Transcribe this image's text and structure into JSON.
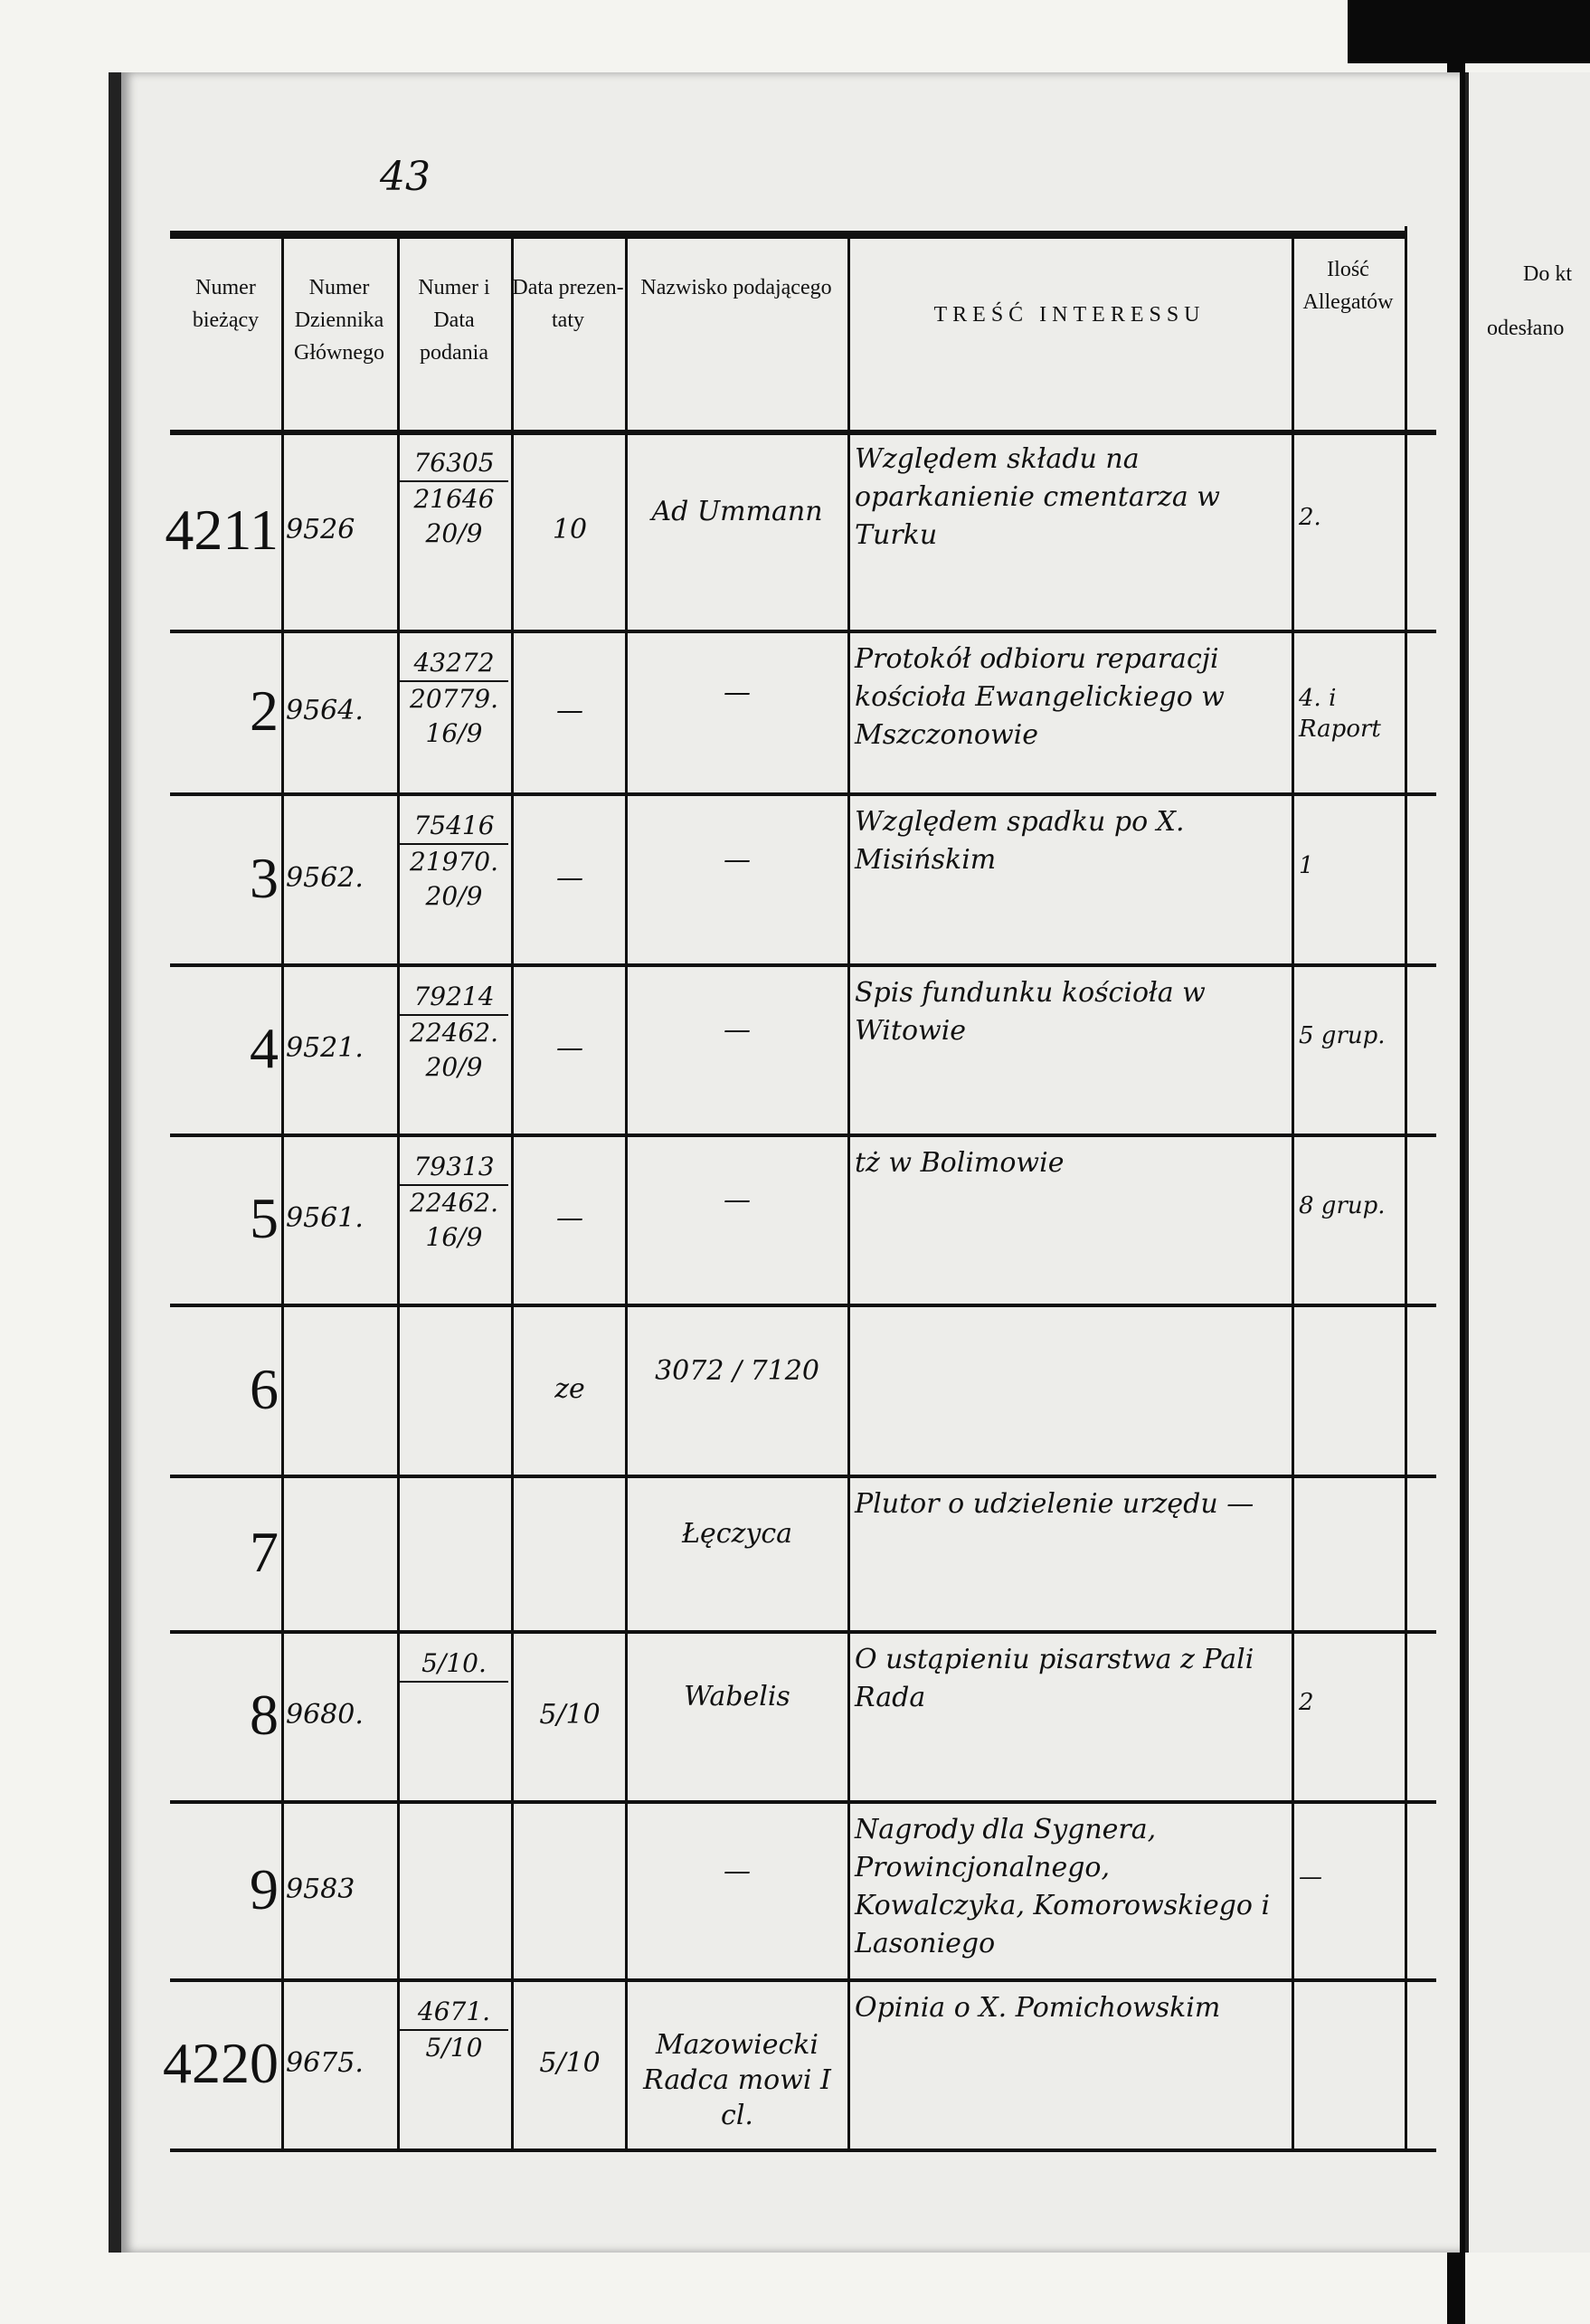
{
  "page_number": "43",
  "headers": {
    "numer_biezacy": "Numer bieżący",
    "numer_dziennika": "Numer Dziennika Głównego",
    "numer_data_podania": "Numer i Data podania",
    "data_prezentaty": "Data prezen-taty",
    "nazwisko": "Nazwisko podającego",
    "tresc": "TREŚĆ INTERESSU",
    "allegaty": "Ilość Allegatów"
  },
  "next_page_header": {
    "line1": "Do kt",
    "line2": "odesłano"
  },
  "rows": [
    {
      "num": "4211",
      "journal": "9526",
      "sub": [
        "76305",
        "21646",
        "20/9"
      ],
      "prez": "10",
      "name": "Ad Ummann",
      "content": "Względem składu na oparkanienie cmentarza w Turku",
      "alleg": "2."
    },
    {
      "num": "2",
      "journal": "9564.",
      "sub": [
        "43272",
        "20779.",
        "16/9"
      ],
      "prez": "—",
      "name": "—",
      "content": "Protokół odbioru reparacji kościoła Ewangelickiego w Mszczonowie",
      "alleg": "4. i Raport"
    },
    {
      "num": "3",
      "journal": "9562.",
      "sub": [
        "75416",
        "21970.",
        "20/9"
      ],
      "prez": "—",
      "name": "—",
      "content": "Względem spadku po X. Misińskim",
      "alleg": "1"
    },
    {
      "num": "4",
      "journal": "9521.",
      "sub": [
        "79214",
        "22462.",
        "20/9"
      ],
      "prez": "—",
      "name": "—",
      "content": "Spis fundunku kościoła w Witowie",
      "alleg": "5 grup."
    },
    {
      "num": "5",
      "journal": "9561.",
      "sub": [
        "79313",
        "22462.",
        "16/9"
      ],
      "prez": "—",
      "name": "—",
      "content": "tż w Bolimowie",
      "alleg": "8 grup."
    },
    {
      "num": "6",
      "journal": "",
      "sub": [],
      "prez": "ze",
      "name": "3072 / 7120",
      "content": "",
      "alleg": ""
    },
    {
      "num": "7",
      "journal": "",
      "sub": [],
      "prez": "",
      "name": "Łęczyca",
      "content": "Plutor o udzielenie urzędu —",
      "alleg": ""
    },
    {
      "num": "8",
      "journal": "9680.",
      "sub": [
        "5/10."
      ],
      "prez": "5/10",
      "name": "Wabelis",
      "content": "O ustąpieniu pisarstwa z Pali Rada",
      "alleg": "2"
    },
    {
      "num": "9",
      "journal": "9583",
      "sub": [],
      "prez": "",
      "name": "—",
      "content": "Nagrody dla Sygnera, Prowincjonalnego, Kowalczyka, Komorowskiego i Lasoniego",
      "alleg": "—"
    },
    {
      "num": "4220",
      "journal": "9675.",
      "sub": [
        "4671.",
        "5/10"
      ],
      "prez": "5/10",
      "name": "Mazowiecki Radca mowi I cl.",
      "content": "Opinia o X. Pomichowskim",
      "alleg": ""
    }
  ]
}
